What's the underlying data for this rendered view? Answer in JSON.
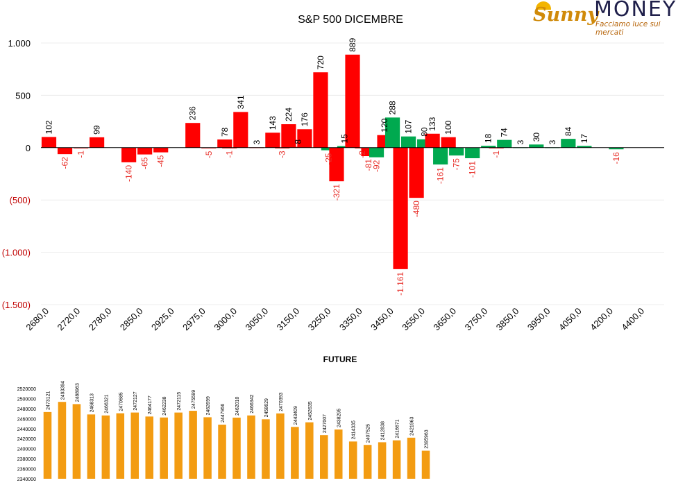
{
  "logo": {
    "brand_script": "Sunny",
    "brand_word": "MONEY",
    "tagline": "Facciamo luce sui mercati"
  },
  "colors": {
    "positive": "#00a94f",
    "negative": "#ff0000",
    "future_bar": "#f39c12",
    "negative_text": "#e8302a"
  },
  "chart_data": [
    {
      "type": "bar",
      "title": "S&P 500 DICEMBRE",
      "xlabel": "",
      "ylabel": "",
      "ylim": [
        -1500,
        1000
      ],
      "yticks": [
        {
          "value": 1000,
          "label": "1.000"
        },
        {
          "value": 500,
          "label": "500"
        },
        {
          "value": 0,
          "label": "0"
        },
        {
          "value": -500,
          "label": "(500)"
        },
        {
          "value": -1000,
          "label": "(1.000)"
        },
        {
          "value": -1500,
          "label": "(1.500)"
        }
      ],
      "xtick_labels": [
        "2680,0",
        "2720,0",
        "2780,0",
        "2850,0",
        "2925,0",
        "2975,0",
        "3000,0",
        "3050,0",
        "3150,0",
        "3250,0",
        "3350,0",
        "3450,0",
        "3550,0",
        "3650,0",
        "3750,0",
        "3850,0",
        "3950,0",
        "4050,0",
        "4200,0",
        "4400,0"
      ],
      "categories": [
        "2680,0",
        "2720,0",
        "2780,0",
        "2850,0",
        "2925,0",
        "2975,0",
        "3000,0",
        "3050,0",
        "3150,0",
        "3250,0",
        "3350,0",
        "3450,0",
        "3550,0",
        "3650,0",
        "3750,0",
        "3850,0",
        "3950,0",
        "4050,0",
        "4200,0",
        "4400,0"
      ],
      "bars": [
        {
          "slot": 0,
          "value": 102,
          "label": "102",
          "color": "negative"
        },
        {
          "slot": 1,
          "value": -62,
          "label": "-62",
          "color": "negative"
        },
        {
          "slot": 2,
          "value": -1,
          "label": "-1",
          "color": "negative"
        },
        {
          "slot": 3,
          "value": 99,
          "label": "99",
          "color": "negative"
        },
        {
          "slot": 5,
          "value": -140,
          "label": "-140",
          "color": "negative"
        },
        {
          "slot": 6,
          "value": -65,
          "label": "-65",
          "color": "negative"
        },
        {
          "slot": 7,
          "value": -45,
          "label": "-45",
          "color": "negative"
        },
        {
          "slot": 9,
          "value": 236,
          "label": "236",
          "color": "negative"
        },
        {
          "slot": 10,
          "value": -5,
          "label": "-5",
          "color": "negative"
        },
        {
          "slot": 11,
          "value": 78,
          "label": "78",
          "color": "negative"
        },
        {
          "slot": 11.3,
          "value": -1,
          "label": "-1",
          "color": "negative"
        },
        {
          "slot": 12,
          "value": 341,
          "label": "341",
          "color": "negative"
        },
        {
          "slot": 13,
          "value": 3,
          "label": "3",
          "color": "negative"
        },
        {
          "slot": 14,
          "value": 143,
          "label": "143",
          "color": "negative"
        },
        {
          "slot": 14.6,
          "value": -3,
          "label": "-3",
          "color": "negative"
        },
        {
          "slot": 15,
          "value": 224,
          "label": "224",
          "color": "negative"
        },
        {
          "slot": 15.6,
          "value": 8,
          "label": "8",
          "color": "negative"
        },
        {
          "slot": 16,
          "value": 176,
          "label": "176",
          "color": "negative"
        },
        {
          "slot": 17,
          "value": 720,
          "label": "720",
          "color": "negative"
        },
        {
          "slot": 17.5,
          "value": -25,
          "label": "-25",
          "color": "positive"
        },
        {
          "slot": 18,
          "value": -321,
          "label": "-321",
          "color": "negative"
        },
        {
          "slot": 18.5,
          "value": 15,
          "label": "15",
          "color": "positive"
        },
        {
          "slot": 19,
          "value": 889,
          "label": "889",
          "color": "negative"
        },
        {
          "slot": 19.6,
          "value": -2,
          "label": "-2",
          "color": "negative"
        },
        {
          "slot": 20,
          "value": -81,
          "label": "-81",
          "color": "negative"
        },
        {
          "slot": 20.5,
          "value": -92,
          "label": "-92",
          "color": "positive"
        },
        {
          "slot": 21,
          "value": 120,
          "label": "120",
          "color": "negative"
        },
        {
          "slot": 21.5,
          "value": 288,
          "label": "288",
          "color": "positive"
        },
        {
          "slot": 22,
          "value": -1161,
          "label": "-1.161",
          "color": "negative"
        },
        {
          "slot": 22.5,
          "value": 107,
          "label": "107",
          "color": "positive"
        },
        {
          "slot": 23,
          "value": -480,
          "label": "-480",
          "color": "negative"
        },
        {
          "slot": 23.5,
          "value": 80,
          "label": "80",
          "color": "positive"
        },
        {
          "slot": 24,
          "value": 133,
          "label": "133",
          "color": "negative"
        },
        {
          "slot": 24.5,
          "value": -161,
          "label": "-161",
          "color": "positive"
        },
        {
          "slot": 25,
          "value": 100,
          "label": "100",
          "color": "negative"
        },
        {
          "slot": 25.5,
          "value": -75,
          "label": "-75",
          "color": "positive"
        },
        {
          "slot": 26.5,
          "value": -101,
          "label": "-101",
          "color": "positive"
        },
        {
          "slot": 27.5,
          "value": 18,
          "label": "18",
          "color": "positive"
        },
        {
          "slot": 28,
          "value": -1,
          "label": "-1",
          "color": "negative"
        },
        {
          "slot": 28.5,
          "value": 74,
          "label": "74",
          "color": "positive"
        },
        {
          "slot": 29.5,
          "value": 3,
          "label": "3",
          "color": "positive"
        },
        {
          "slot": 30.5,
          "value": 30,
          "label": "30",
          "color": "positive"
        },
        {
          "slot": 31.5,
          "value": 3,
          "label": "3",
          "color": "positive"
        },
        {
          "slot": 32.5,
          "value": 84,
          "label": "84",
          "color": "positive"
        },
        {
          "slot": 33.5,
          "value": 17,
          "label": "17",
          "color": "positive"
        },
        {
          "slot": 35.5,
          "value": -16,
          "label": "-16",
          "color": "positive"
        }
      ]
    },
    {
      "type": "bar",
      "title": "FUTURE",
      "xlabel": "",
      "ylabel": "",
      "ylim": [
        2340000,
        2520000
      ],
      "yticks": [
        2340000,
        2360000,
        2380000,
        2400000,
        2420000,
        2440000,
        2460000,
        2480000,
        2500000,
        2520000
      ],
      "values": [
        2473121,
        2493394,
        2488963,
        2468313,
        2466321,
        2470685,
        2472127,
        2464177,
        2462238,
        2472115,
        2475599,
        2462699,
        2447956,
        2462010,
        2466342,
        2458629,
        2470393,
        2443409,
        2452635,
        2427007,
        2438295,
        2414335,
        2407525,
        2412838,
        2416671,
        2421963,
        2395963
      ]
    }
  ]
}
